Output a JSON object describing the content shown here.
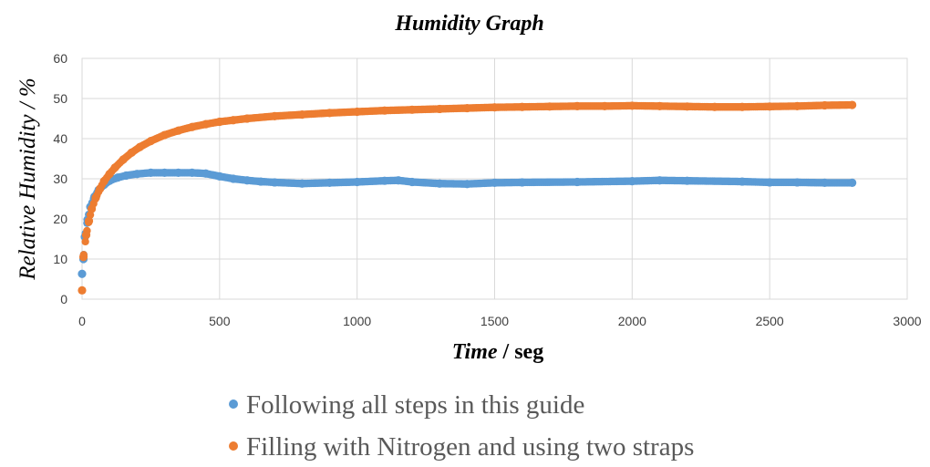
{
  "chart_data": {
    "type": "scatter",
    "title": "Humidity Graph",
    "xlabel_part1": "Time",
    "xlabel_part2": " / seg",
    "ylabel": "Relative Humidity / %",
    "xlim": [
      0,
      3000
    ],
    "ylim": [
      0,
      60
    ],
    "xticks": [
      0,
      500,
      1000,
      1500,
      2000,
      2500,
      3000
    ],
    "yticks": [
      0,
      10,
      20,
      30,
      40,
      50,
      60
    ],
    "grid": true,
    "legend_position": "bottom",
    "series": [
      {
        "name": "Following all steps in this guide",
        "color": "#5b9bd5",
        "x": [
          0,
          5,
          10,
          20,
          30,
          45,
          60,
          80,
          100,
          130,
          160,
          200,
          250,
          300,
          350,
          400,
          450,
          500,
          550,
          600,
          650,
          700,
          800,
          900,
          1000,
          1100,
          1150,
          1200,
          1300,
          1400,
          1500,
          1600,
          1800,
          2000,
          2100,
          2200,
          2400,
          2500,
          2600,
          2700,
          2800
        ],
        "y": [
          6.3,
          10.0,
          15.5,
          19.8,
          23.0,
          25.5,
          27.2,
          28.5,
          29.5,
          30.3,
          30.8,
          31.2,
          31.5,
          31.5,
          31.5,
          31.5,
          31.3,
          30.6,
          30.0,
          29.6,
          29.3,
          29.1,
          28.8,
          29.0,
          29.2,
          29.5,
          29.6,
          29.2,
          28.8,
          28.7,
          29.0,
          29.1,
          29.2,
          29.4,
          29.6,
          29.5,
          29.3,
          29.1,
          29.1,
          29.0,
          29.0
        ]
      },
      {
        "name": "Filling with Nitrogen and using two straps",
        "color": "#ed7d31",
        "x": [
          0,
          5,
          15,
          25,
          35,
          50,
          65,
          80,
          100,
          120,
          150,
          180,
          210,
          250,
          300,
          350,
          400,
          450,
          500,
          550,
          600,
          700,
          800,
          900,
          1000,
          1100,
          1200,
          1300,
          1400,
          1500,
          1600,
          1700,
          1800,
          1900,
          2000,
          2100,
          2200,
          2300,
          2400,
          2500,
          2600,
          2700,
          2800
        ],
        "y": [
          2.2,
          10.5,
          16.0,
          19.5,
          22.5,
          25.3,
          27.5,
          29.4,
          31.2,
          32.8,
          34.8,
          36.5,
          37.9,
          39.4,
          40.9,
          42.0,
          42.9,
          43.6,
          44.2,
          44.6,
          45.0,
          45.6,
          46.0,
          46.4,
          46.7,
          47.0,
          47.2,
          47.4,
          47.6,
          47.8,
          47.9,
          48.0,
          48.1,
          48.1,
          48.2,
          48.1,
          48.0,
          47.9,
          47.9,
          48.0,
          48.1,
          48.3,
          48.4
        ]
      }
    ]
  }
}
